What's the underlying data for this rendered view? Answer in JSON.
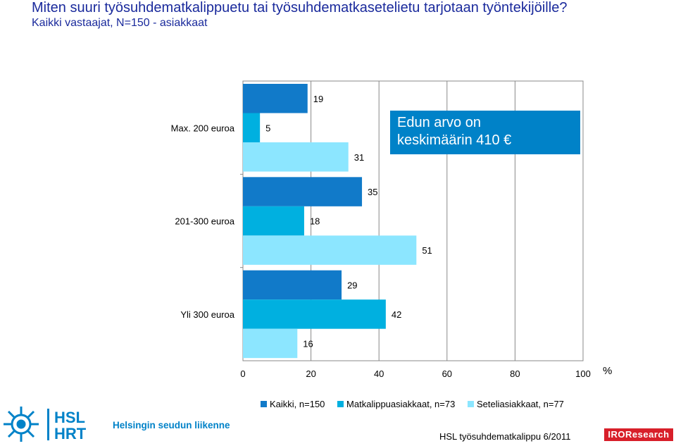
{
  "header": {
    "title": "Miten suuri työsuhdematkalippuetu tai työsuhdematkasetelietu tarjotaan työntekijöille?",
    "subtitle": "Kaikki vastaajat, N=150 - asiakkaat"
  },
  "callout": {
    "line1": "Edun arvo on",
    "line2": "keskimäärin 410 €"
  },
  "chart_data": {
    "type": "bar",
    "orientation": "horizontal",
    "categories": [
      "Max. 200 euroa",
      "201-300 euroa",
      "Yli 300 euroa"
    ],
    "series": [
      {
        "name": "Kaikki, n=150",
        "color": "#117ac9",
        "values": [
          19,
          35,
          29
        ]
      },
      {
        "name": "Matkalippuasiakkaat, n=73",
        "color": "#00b0e0",
        "values": [
          5,
          18,
          42
        ]
      },
      {
        "name": "Seteliasiakkaat, n=77",
        "color": "#8ce6ff",
        "values": [
          31,
          51,
          16
        ]
      }
    ],
    "xlim": [
      0,
      100
    ],
    "xticks": [
      "0",
      "20",
      "40",
      "60",
      "80",
      "100"
    ],
    "x_unit": "%",
    "grid": true,
    "legend_position": "bottom"
  },
  "footer": {
    "source": "HSL työsuhdematkalippu 6/2011",
    "hsl_logo": {
      "line1": "HSL",
      "line2": "HRT",
      "tagline": "Helsingin seudun liikenne"
    },
    "iro_logo": "IROResearch"
  }
}
